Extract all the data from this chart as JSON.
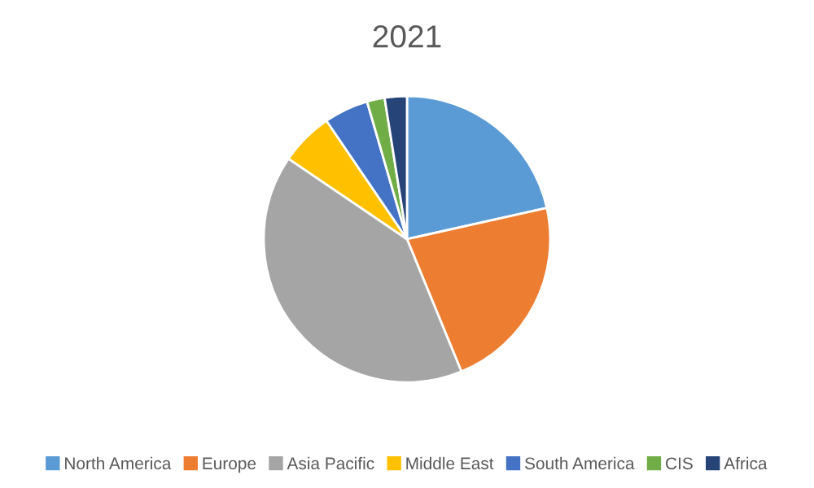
{
  "chart_data": {
    "type": "pie",
    "title": "2021",
    "categories": [
      "North America",
      "Europe",
      "Asia Pacific",
      "Middle East",
      "South America",
      "CIS",
      "Africa"
    ],
    "values": [
      21.5,
      22.3,
      40.7,
      6,
      5,
      2,
      2.5
    ],
    "colors": [
      "#5b9bd5",
      "#ed7d31",
      "#a5a5a5",
      "#ffc000",
      "#4472c4",
      "#70ad47",
      "#264478"
    ],
    "legend": "bottom"
  }
}
